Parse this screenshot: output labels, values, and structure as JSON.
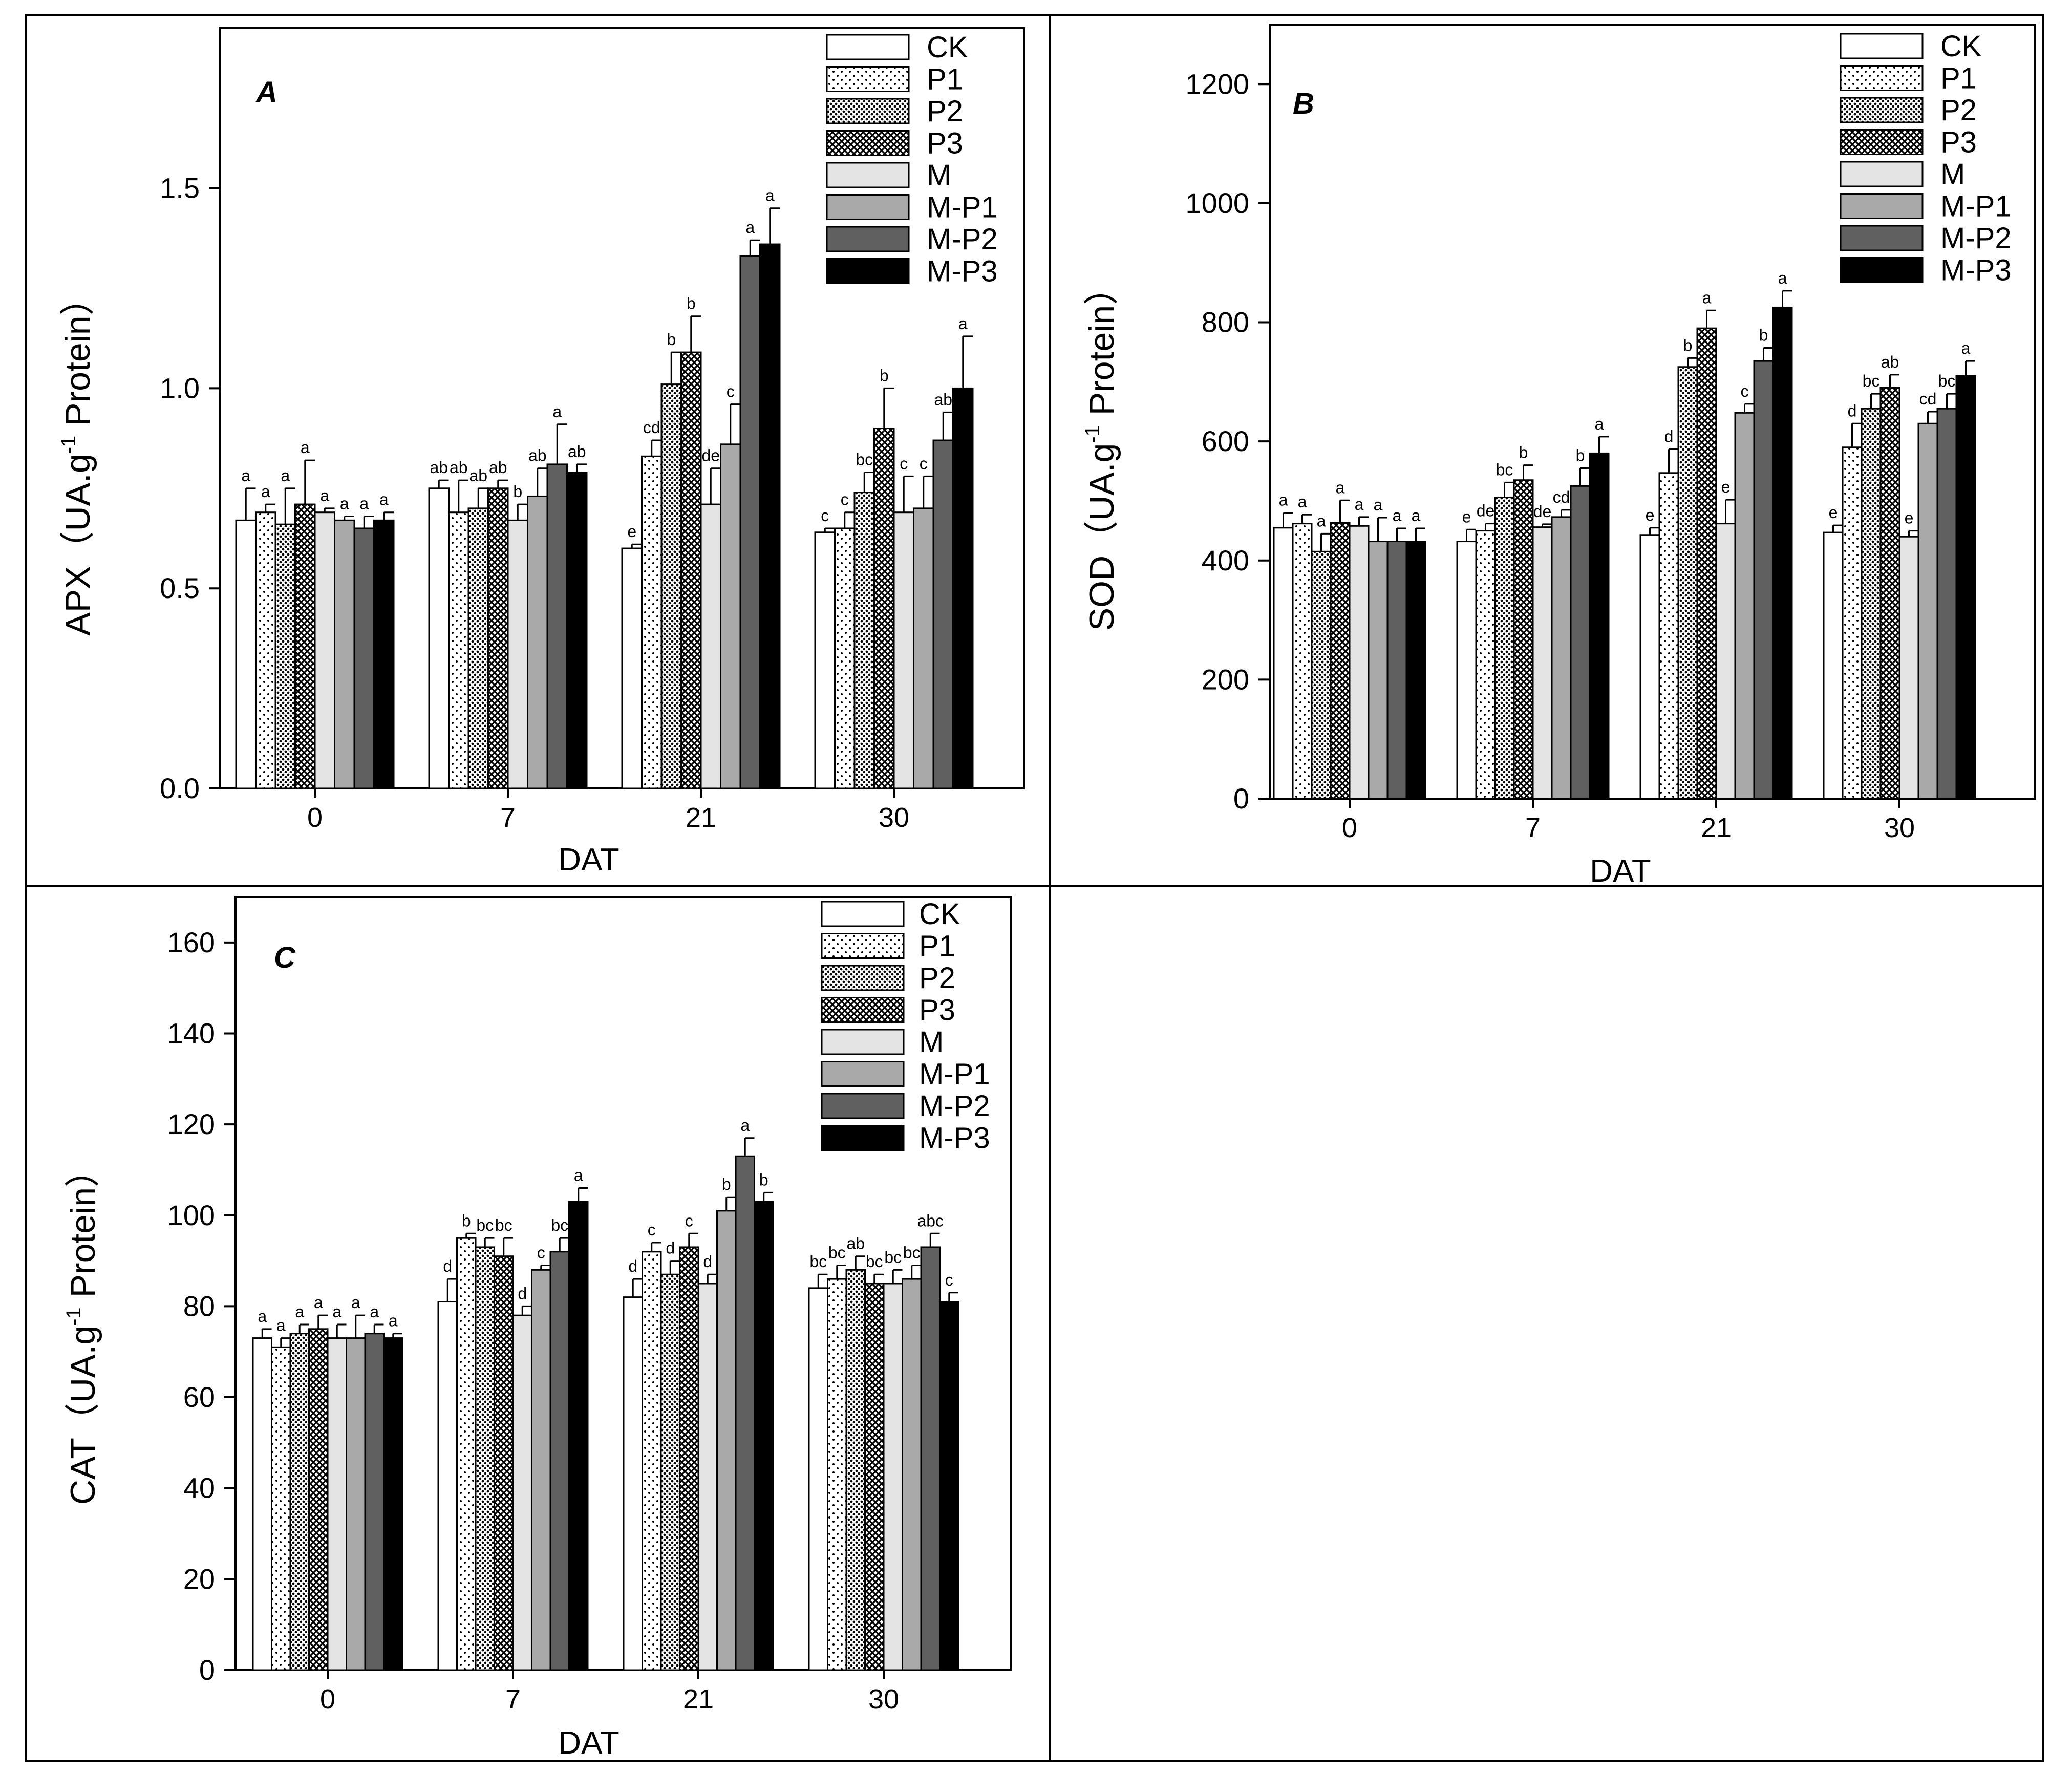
{
  "legend_entries": [
    "CK",
    "P1",
    "P2",
    "P3",
    "M",
    "M-P1",
    "M-P2",
    "M-P3"
  ],
  "chart_data": [
    {
      "id": "A",
      "type": "bar",
      "panel_label": "A",
      "xlabel": "DAT",
      "ylabel": "APX（UA.g-1 Protein）",
      "ylabel_parts": {
        "before": "APX（UA.g",
        "sup": "-1",
        "after": " Protein）"
      },
      "categories": [
        "0",
        "7",
        "21",
        "30"
      ],
      "ylim": [
        0,
        1.9
      ],
      "yticks": [
        0.0,
        0.5,
        1.0,
        1.5
      ],
      "ytick_labels": [
        "0.0",
        "0.5",
        "1.0",
        "1.5"
      ],
      "legend_position": "top-right",
      "series": [
        {
          "name": "CK",
          "values": [
            0.67,
            0.75,
            0.6,
            0.64
          ],
          "errors": [
            0.08,
            0.02,
            0.01,
            0.01
          ],
          "letters": [
            "a",
            "ab",
            "e",
            "c"
          ]
        },
        {
          "name": "P1",
          "values": [
            0.69,
            0.69,
            0.83,
            0.65
          ],
          "errors": [
            0.02,
            0.08,
            0.04,
            0.04
          ],
          "letters": [
            "a",
            "ab",
            "cd",
            "c"
          ]
        },
        {
          "name": "P2",
          "values": [
            0.66,
            0.7,
            1.01,
            0.74
          ],
          "errors": [
            0.09,
            0.05,
            0.08,
            0.05
          ],
          "letters": [
            "a",
            "ab",
            "b",
            "bc"
          ]
        },
        {
          "name": "P3",
          "values": [
            0.71,
            0.75,
            1.09,
            0.9
          ],
          "errors": [
            0.11,
            0.02,
            0.09,
            0.1
          ],
          "letters": [
            "a",
            "ab",
            "b",
            "b"
          ]
        },
        {
          "name": "M",
          "values": [
            0.69,
            0.67,
            0.71,
            0.69
          ],
          "errors": [
            0.01,
            0.04,
            0.09,
            0.09
          ],
          "letters": [
            "a",
            "b",
            "de",
            "c"
          ]
        },
        {
          "name": "M-P1",
          "values": [
            0.67,
            0.73,
            0.86,
            0.7
          ],
          "errors": [
            0.01,
            0.07,
            0.1,
            0.08
          ],
          "letters": [
            "a",
            "ab",
            "c",
            "c"
          ]
        },
        {
          "name": "M-P2",
          "values": [
            0.65,
            0.81,
            1.33,
            0.87
          ],
          "errors": [
            0.03,
            0.1,
            0.04,
            0.07
          ],
          "letters": [
            "a",
            "a",
            "a",
            "ab"
          ]
        },
        {
          "name": "M-P3",
          "values": [
            0.67,
            0.79,
            1.36,
            1.0
          ],
          "errors": [
            0.02,
            0.02,
            0.09,
            0.13
          ],
          "letters": [
            "a",
            "ab",
            "a",
            "a"
          ]
        }
      ]
    },
    {
      "id": "B",
      "type": "bar",
      "panel_label": "B",
      "xlabel": "DAT",
      "ylabel": "SOD（UA.g-1 Protein）",
      "ylabel_parts": {
        "before": "SOD（UA.g",
        "sup": "-1",
        "after": " Protein）"
      },
      "categories": [
        "0",
        "7",
        "21",
        "30"
      ],
      "ylim": [
        0,
        1300
      ],
      "yticks": [
        0,
        200,
        400,
        600,
        800,
        1000,
        1200
      ],
      "ytick_labels": [
        "0",
        "200",
        "400",
        "600",
        "800",
        "1000",
        "1200"
      ],
      "legend_position": "top-right",
      "series": [
        {
          "name": "CK",
          "values": [
            455,
            432,
            443,
            447
          ],
          "errors": [
            25,
            20,
            12,
            12
          ],
          "letters": [
            "a",
            "e",
            "e",
            "e"
          ]
        },
        {
          "name": "P1",
          "values": [
            462,
            450,
            547,
            590
          ],
          "errors": [
            15,
            12,
            40,
            40
          ],
          "letters": [
            "a",
            "de",
            "d",
            "d"
          ]
        },
        {
          "name": "P2",
          "values": [
            415,
            506,
            725,
            655
          ],
          "errors": [
            30,
            25,
            15,
            25
          ],
          "letters": [
            "a",
            "bc",
            "b",
            "bc"
          ]
        },
        {
          "name": "P3",
          "values": [
            463,
            535,
            790,
            690
          ],
          "errors": [
            38,
            25,
            30,
            22
          ],
          "letters": [
            "a",
            "b",
            "a",
            "ab"
          ]
        },
        {
          "name": "M",
          "values": [
            458,
            456,
            462,
            440
          ],
          "errors": [
            15,
            5,
            40,
            10
          ],
          "letters": [
            "a",
            "de",
            "e",
            "e"
          ]
        },
        {
          "name": "M-P1",
          "values": [
            432,
            473,
            648,
            630
          ],
          "errors": [
            40,
            12,
            15,
            20
          ],
          "letters": [
            "a",
            "cd",
            "c",
            "cd"
          ]
        },
        {
          "name": "M-P2",
          "values": [
            432,
            525,
            735,
            655
          ],
          "errors": [
            22,
            30,
            22,
            25
          ],
          "letters": [
            "a",
            "b",
            "b",
            "bc"
          ]
        },
        {
          "name": "M-P3",
          "values": [
            432,
            580,
            825,
            710
          ],
          "errors": [
            22,
            28,
            28,
            25
          ],
          "letters": [
            "a",
            "a",
            "a",
            "a"
          ]
        }
      ]
    },
    {
      "id": "C",
      "type": "bar",
      "panel_label": "C",
      "xlabel": "DAT",
      "ylabel": "CAT（UA.g-1 Protein）",
      "ylabel_parts": {
        "before": "CAT（UA.g",
        "sup": "-1",
        "after": " Protein）"
      },
      "categories": [
        "0",
        "7",
        "21",
        "30"
      ],
      "ylim": [
        0,
        170
      ],
      "yticks": [
        0,
        20,
        40,
        60,
        80,
        100,
        120,
        140,
        160
      ],
      "ytick_labels": [
        "0",
        "20",
        "40",
        "60",
        "80",
        "100",
        "120",
        "140",
        "160"
      ],
      "legend_position": "top-right",
      "series": [
        {
          "name": "CK",
          "values": [
            73,
            81,
            82,
            84
          ],
          "errors": [
            2,
            5,
            4,
            3
          ],
          "letters": [
            "a",
            "d",
            "d",
            "bc"
          ]
        },
        {
          "name": "P1",
          "values": [
            71,
            95,
            92,
            86
          ],
          "errors": [
            2,
            1,
            2,
            3
          ],
          "letters": [
            "a",
            "b",
            "c",
            "bc"
          ]
        },
        {
          "name": "P2",
          "values": [
            74,
            93,
            87,
            88
          ],
          "errors": [
            2,
            2,
            3,
            3
          ],
          "letters": [
            "a",
            "bc",
            "d",
            "ab"
          ]
        },
        {
          "name": "P3",
          "values": [
            75,
            91,
            93,
            85
          ],
          "errors": [
            3,
            4,
            3,
            2
          ],
          "letters": [
            "a",
            "bc",
            "c",
            "bc"
          ]
        },
        {
          "name": "M",
          "values": [
            73,
            78,
            85,
            85
          ],
          "errors": [
            3,
            2,
            2,
            3
          ],
          "letters": [
            "a",
            "d",
            "d",
            "bc"
          ]
        },
        {
          "name": "M-P1",
          "values": [
            73,
            88,
            101,
            86
          ],
          "errors": [
            5,
            1,
            3,
            3
          ],
          "letters": [
            "a",
            "c",
            "b",
            "bc"
          ]
        },
        {
          "name": "M-P2",
          "values": [
            74,
            92,
            113,
            93
          ],
          "errors": [
            2,
            3,
            4,
            3
          ],
          "letters": [
            "a",
            "bc",
            "a",
            "abc"
          ]
        },
        {
          "name": "M-P3",
          "values": [
            73,
            103,
            103,
            81
          ],
          "errors": [
            1,
            3,
            2,
            2
          ],
          "letters": [
            "a",
            "a",
            "b",
            "c"
          ]
        }
      ]
    }
  ]
}
